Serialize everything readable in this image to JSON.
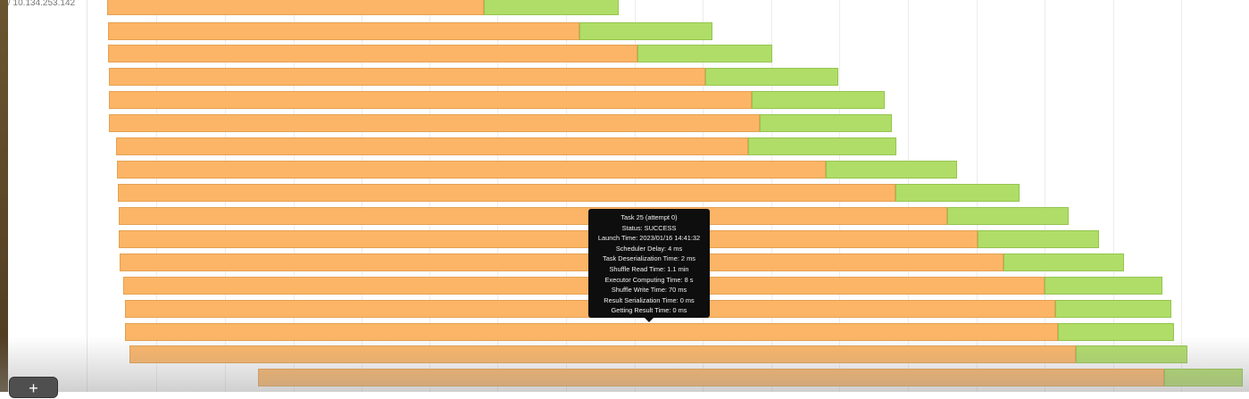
{
  "timeline": {
    "host_label": "/ 10.134.253.142",
    "legend_colors": {
      "compute": "#fcb566",
      "result": "#b0dd68"
    }
  },
  "tooltip": {
    "lines": [
      "Task 25 (attempt 0)",
      "Status: SUCCESS",
      "Launch Time: 2023/01/16 14:41:32",
      "Scheduler Delay: 4 ms",
      "Task Deserialization Time: 2 ms",
      "Shuffle Read Time: 1.1 min",
      "Executor Computing Time: 8 s",
      "Shuffle Write Time: 70 ms",
      "Result Serialization Time: 0 ms",
      "Getting Result Time: 0 ms"
    ]
  },
  "controls": {
    "zoom_in_label": "+"
  }
}
